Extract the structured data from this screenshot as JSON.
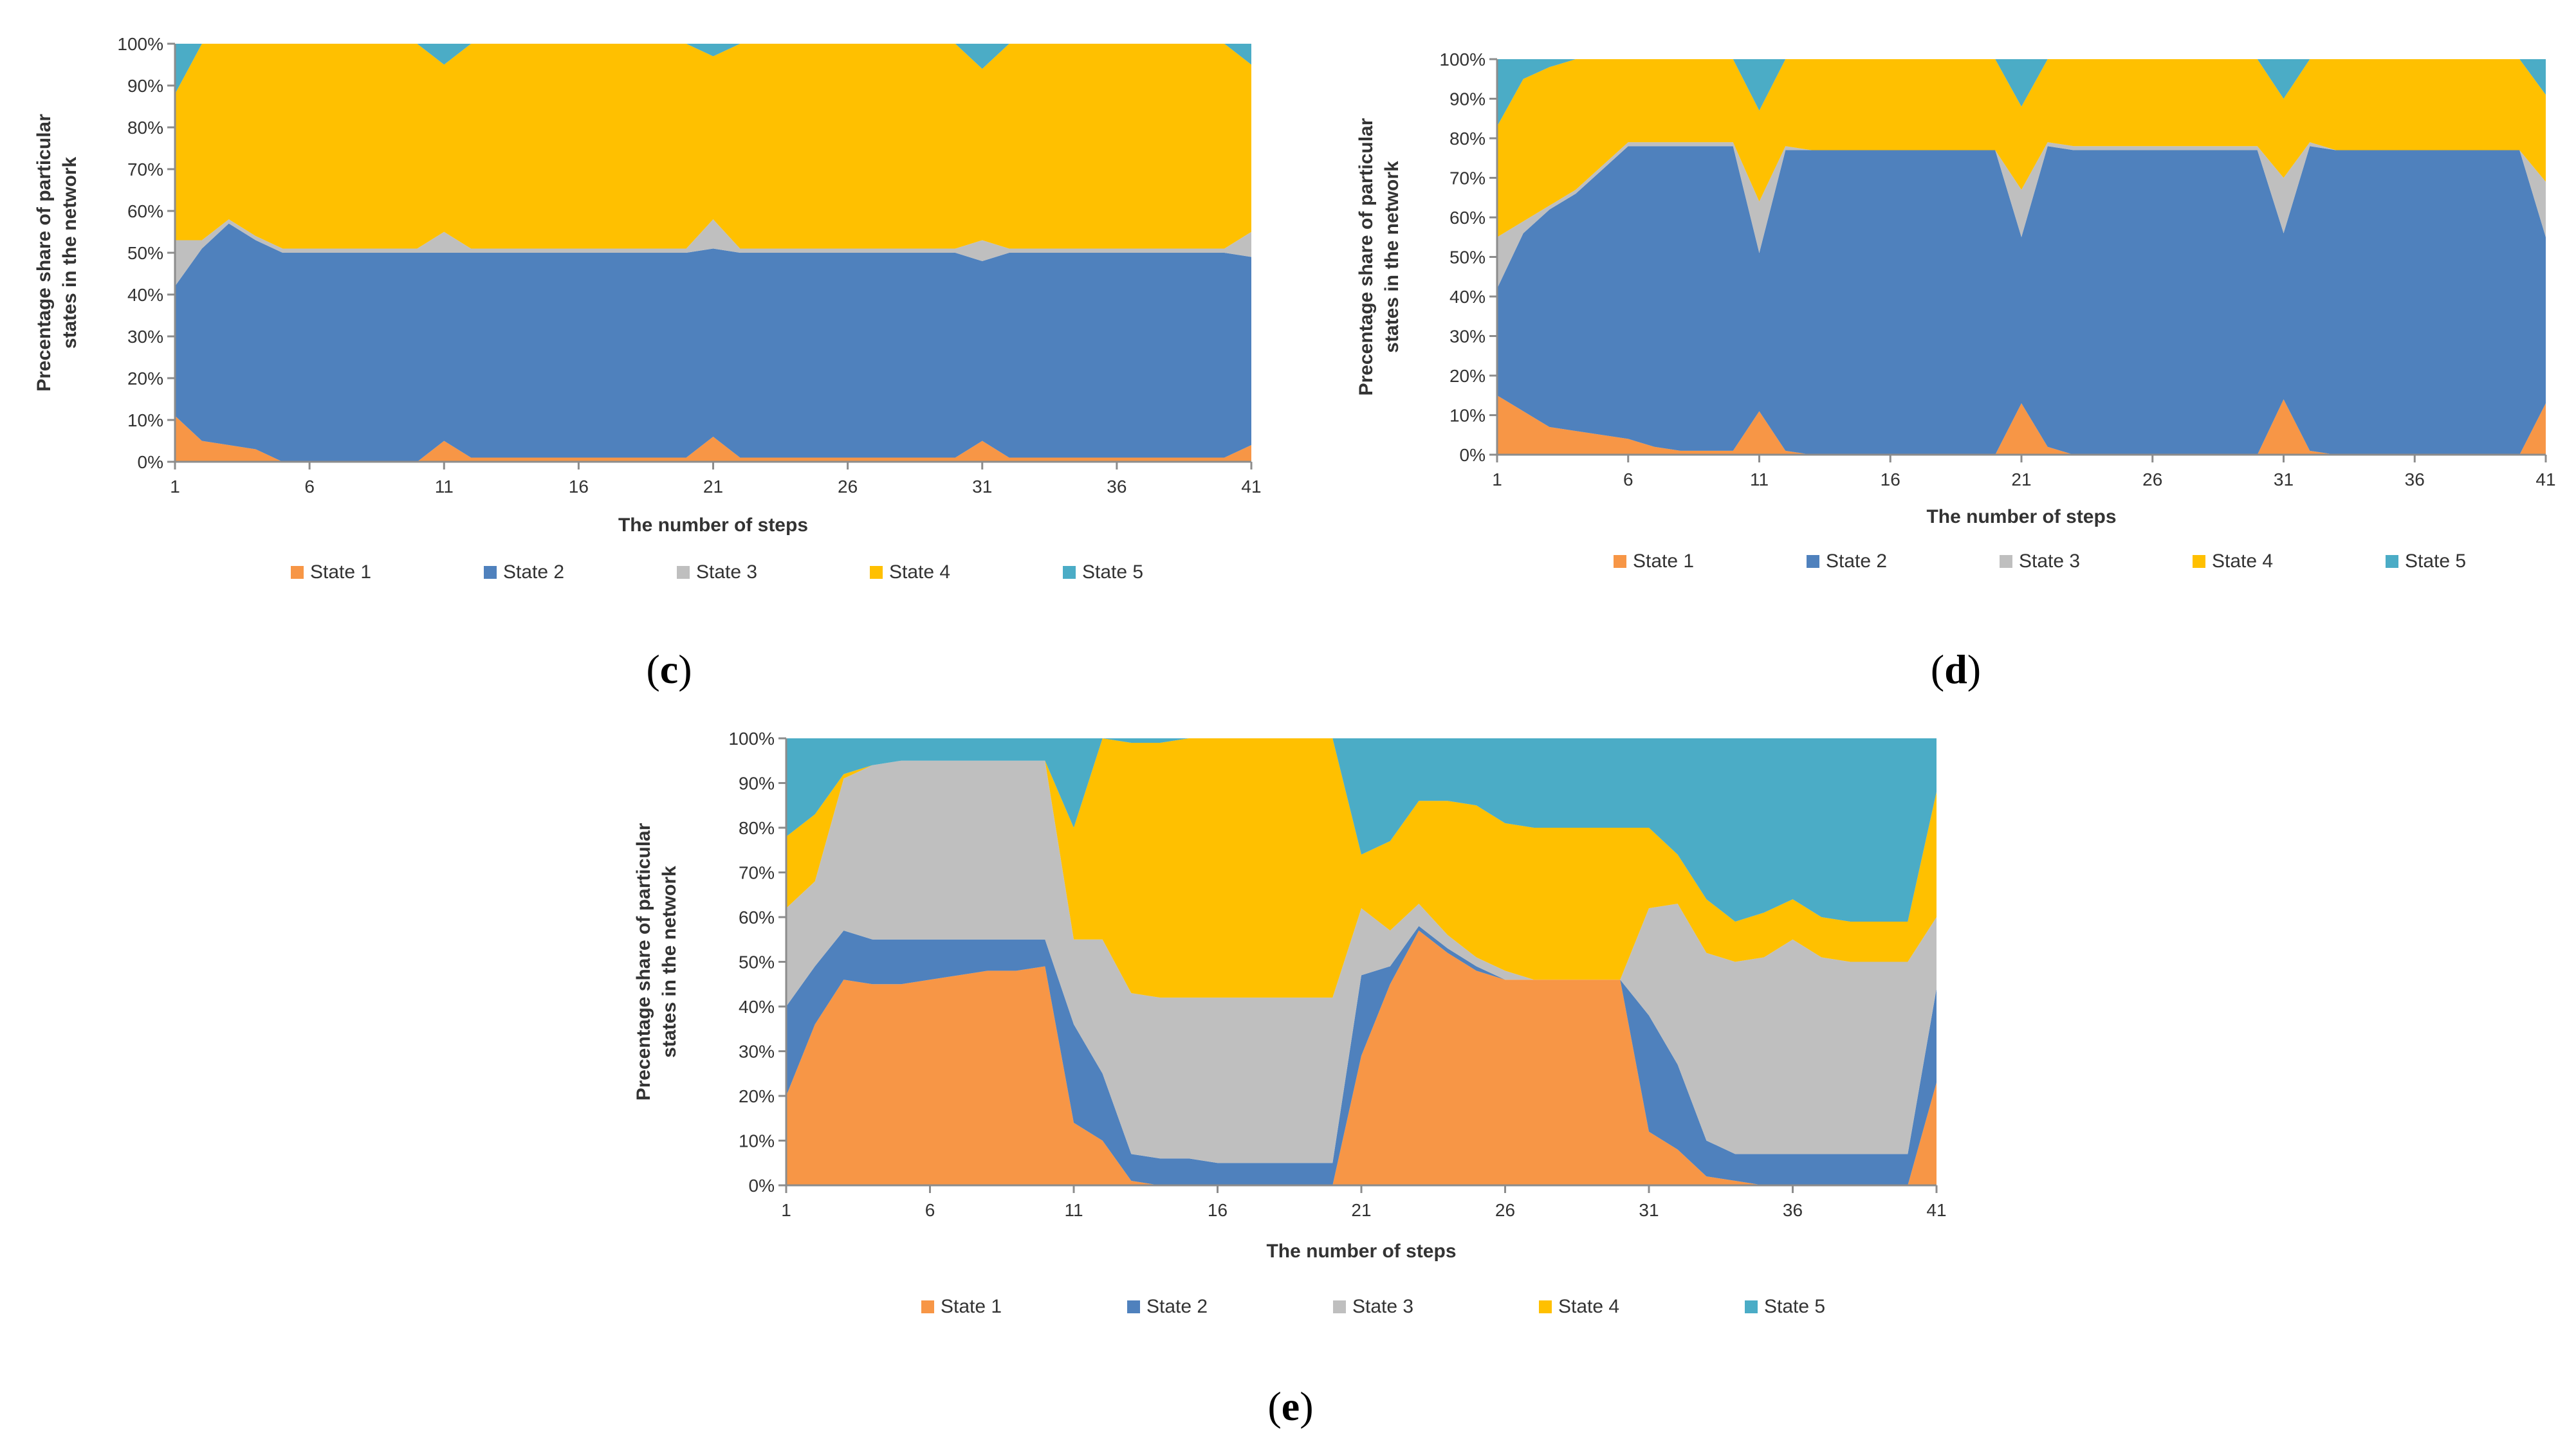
{
  "chart_data": [
    {
      "type": "area",
      "stacked": "percent",
      "panel": "c",
      "caption": {
        "open": "(",
        "letter": "c",
        "close": ")"
      },
      "xlabel": "The number of steps",
      "ylabel_lines": [
        "Precentage share  of particular",
        "states in the network"
      ],
      "x_ticks": [
        1,
        6,
        11,
        16,
        21,
        26,
        31,
        36,
        41
      ],
      "y_ticks": [
        "0%",
        "10%",
        "20%",
        "30%",
        "40%",
        "50%",
        "60%",
        "70%",
        "80%",
        "90%",
        "100%"
      ],
      "xlim": [
        1,
        41
      ],
      "ylim": [
        0,
        100
      ],
      "legend": "bottom",
      "series": [
        {
          "name": "State 1",
          "color": "#F79646",
          "values": [
            11,
            5,
            4,
            3,
            0,
            0,
            0,
            0,
            0,
            0,
            5,
            1,
            1,
            1,
            1,
            1,
            1,
            1,
            1,
            1,
            6,
            1,
            1,
            1,
            1,
            1,
            1,
            1,
            1,
            1,
            5,
            1,
            1,
            1,
            1,
            1,
            1,
            1,
            1,
            1,
            4
          ]
        },
        {
          "name": "State 2",
          "color": "#4F81BD",
          "values": [
            31,
            46,
            53,
            50,
            50,
            50,
            50,
            50,
            50,
            50,
            45,
            49,
            49,
            49,
            49,
            49,
            49,
            49,
            49,
            49,
            45,
            49,
            49,
            49,
            49,
            49,
            49,
            49,
            49,
            49,
            43,
            49,
            49,
            49,
            49,
            49,
            49,
            49,
            49,
            49,
            45
          ]
        },
        {
          "name": "State 3",
          "color": "#BFBFBF",
          "values": [
            11,
            2,
            1,
            1,
            1,
            1,
            1,
            1,
            1,
            1,
            5,
            1,
            1,
            1,
            1,
            1,
            1,
            1,
            1,
            1,
            7,
            1,
            1,
            1,
            1,
            1,
            1,
            1,
            1,
            1,
            5,
            1,
            1,
            1,
            1,
            1,
            1,
            1,
            1,
            1,
            6
          ]
        },
        {
          "name": "State 4",
          "color": "#FFC000",
          "values": [
            35,
            47,
            42,
            46,
            49,
            49,
            49,
            49,
            49,
            49,
            40,
            49,
            49,
            49,
            49,
            49,
            49,
            49,
            49,
            49,
            39,
            49,
            49,
            49,
            49,
            49,
            49,
            49,
            49,
            49,
            41,
            49,
            49,
            49,
            49,
            49,
            49,
            49,
            49,
            49,
            40
          ]
        },
        {
          "name": "State 5",
          "color": "#4BACC6",
          "values": [
            12,
            0,
            0,
            0,
            0,
            0,
            0,
            0,
            0,
            0,
            5,
            0,
            0,
            0,
            0,
            0,
            0,
            0,
            0,
            0,
            3,
            0,
            0,
            0,
            0,
            0,
            0,
            0,
            0,
            0,
            6,
            0,
            0,
            0,
            0,
            0,
            0,
            0,
            0,
            0,
            5
          ]
        }
      ]
    },
    {
      "type": "area",
      "stacked": "percent",
      "panel": "d",
      "caption": {
        "open": "(",
        "letter": "d",
        "close": ")"
      },
      "xlabel": "The number of steps",
      "ylabel_lines": [
        "Precentage share  of particular",
        "states in the network"
      ],
      "x_ticks": [
        1,
        6,
        11,
        16,
        21,
        26,
        31,
        36,
        41
      ],
      "y_ticks": [
        "0%",
        "10%",
        "20%",
        "30%",
        "40%",
        "50%",
        "60%",
        "70%",
        "80%",
        "90%",
        "100%"
      ],
      "xlim": [
        1,
        41
      ],
      "ylim": [
        0,
        100
      ],
      "legend": "bottom",
      "series": [
        {
          "name": "State 1",
          "color": "#F79646",
          "values": [
            15,
            11,
            7,
            6,
            5,
            4,
            2,
            1,
            1,
            1,
            11,
            1,
            0,
            0,
            0,
            0,
            0,
            0,
            0,
            0,
            13,
            2,
            0,
            0,
            0,
            0,
            0,
            0,
            0,
            0,
            14,
            1,
            0,
            0,
            0,
            0,
            0,
            0,
            0,
            0,
            13
          ]
        },
        {
          "name": "State 2",
          "color": "#4F81BD",
          "values": [
            27,
            45,
            55,
            60,
            67,
            74,
            76,
            77,
            77,
            77,
            40,
            76,
            77,
            77,
            77,
            77,
            77,
            77,
            77,
            77,
            42,
            76,
            77,
            77,
            77,
            77,
            77,
            77,
            77,
            77,
            42,
            77,
            77,
            77,
            77,
            77,
            77,
            77,
            77,
            77,
            42
          ]
        },
        {
          "name": "State 3",
          "color": "#BFBFBF",
          "values": [
            13,
            3,
            1,
            1,
            1,
            1,
            1,
            1,
            1,
            1,
            13,
            1,
            0,
            0,
            0,
            0,
            0,
            0,
            0,
            0,
            12,
            1,
            1,
            1,
            1,
            1,
            1,
            1,
            1,
            1,
            14,
            1,
            0,
            0,
            0,
            0,
            0,
            0,
            0,
            0,
            14
          ]
        },
        {
          "name": "State 4",
          "color": "#FFC000",
          "values": [
            28,
            36,
            35,
            33,
            27,
            21,
            21,
            21,
            21,
            21,
            23,
            22,
            23,
            23,
            23,
            23,
            23,
            23,
            23,
            23,
            21,
            21,
            22,
            22,
            22,
            22,
            22,
            22,
            22,
            22,
            20,
            21,
            23,
            23,
            23,
            23,
            23,
            23,
            23,
            23,
            22
          ]
        },
        {
          "name": "State 5",
          "color": "#4BACC6",
          "values": [
            17,
            5,
            2,
            0,
            0,
            0,
            0,
            0,
            0,
            0,
            13,
            0,
            0,
            0,
            0,
            0,
            0,
            0,
            0,
            0,
            12,
            0,
            0,
            0,
            0,
            0,
            0,
            0,
            0,
            0,
            10,
            0,
            0,
            0,
            0,
            0,
            0,
            0,
            0,
            0,
            9
          ]
        }
      ]
    },
    {
      "type": "area",
      "stacked": "percent",
      "panel": "e",
      "caption": {
        "open": "(",
        "letter": "e",
        "close": ")"
      },
      "xlabel": "The number of steps",
      "ylabel_lines": [
        "Precentage share  of particular",
        "states in the network"
      ],
      "x_ticks": [
        1,
        6,
        11,
        16,
        21,
        26,
        31,
        36,
        41
      ],
      "y_ticks": [
        "0%",
        "10%",
        "20%",
        "30%",
        "40%",
        "50%",
        "60%",
        "70%",
        "80%",
        "90%",
        "100%"
      ],
      "xlim": [
        1,
        41
      ],
      "ylim": [
        0,
        100
      ],
      "legend": "bottom",
      "series": [
        {
          "name": "State 1",
          "color": "#F79646",
          "values": [
            20,
            36,
            46,
            45,
            45,
            46,
            47,
            48,
            48,
            49,
            14,
            10,
            1,
            0,
            0,
            0,
            0,
            0,
            0,
            0,
            29,
            45,
            57,
            52,
            48,
            46,
            46,
            46,
            46,
            46,
            12,
            8,
            2,
            1,
            0,
            0,
            0,
            0,
            0,
            0,
            23
          ]
        },
        {
          "name": "State 2",
          "color": "#4F81BD",
          "values": [
            20,
            13,
            11,
            10,
            10,
            9,
            8,
            7,
            7,
            6,
            22,
            15,
            6,
            6,
            6,
            5,
            5,
            5,
            5,
            5,
            18,
            4,
            1,
            1,
            1,
            0,
            0,
            0,
            0,
            0,
            26,
            19,
            8,
            6,
            7,
            7,
            7,
            7,
            7,
            7,
            21
          ]
        },
        {
          "name": "State 3",
          "color": "#BFBFBF",
          "values": [
            22,
            19,
            34,
            39,
            40,
            40,
            40,
            40,
            40,
            40,
            19,
            30,
            36,
            36,
            36,
            37,
            37,
            37,
            37,
            37,
            15,
            8,
            5,
            3,
            2,
            2,
            0,
            0,
            0,
            0,
            24,
            36,
            42,
            43,
            44,
            48,
            44,
            43,
            43,
            43,
            16
          ]
        },
        {
          "name": "State 4",
          "color": "#FFC000",
          "values": [
            16,
            15,
            1,
            0,
            0,
            0,
            0,
            0,
            0,
            0,
            25,
            45,
            56,
            57,
            58,
            58,
            58,
            58,
            58,
            58,
            12,
            20,
            23,
            30,
            34,
            33,
            34,
            34,
            34,
            34,
            18,
            11,
            12,
            9,
            10,
            9,
            9,
            9,
            9,
            9,
            28
          ]
        },
        {
          "name": "State 5",
          "color": "#4BACC6",
          "values": [
            22,
            17,
            8,
            6,
            5,
            5,
            5,
            5,
            5,
            5,
            20,
            0,
            1,
            1,
            0,
            0,
            0,
            0,
            0,
            0,
            26,
            23,
            14,
            14,
            15,
            19,
            20,
            20,
            20,
            20,
            20,
            26,
            36,
            41,
            39,
            36,
            40,
            41,
            41,
            41,
            12
          ]
        }
      ]
    }
  ]
}
